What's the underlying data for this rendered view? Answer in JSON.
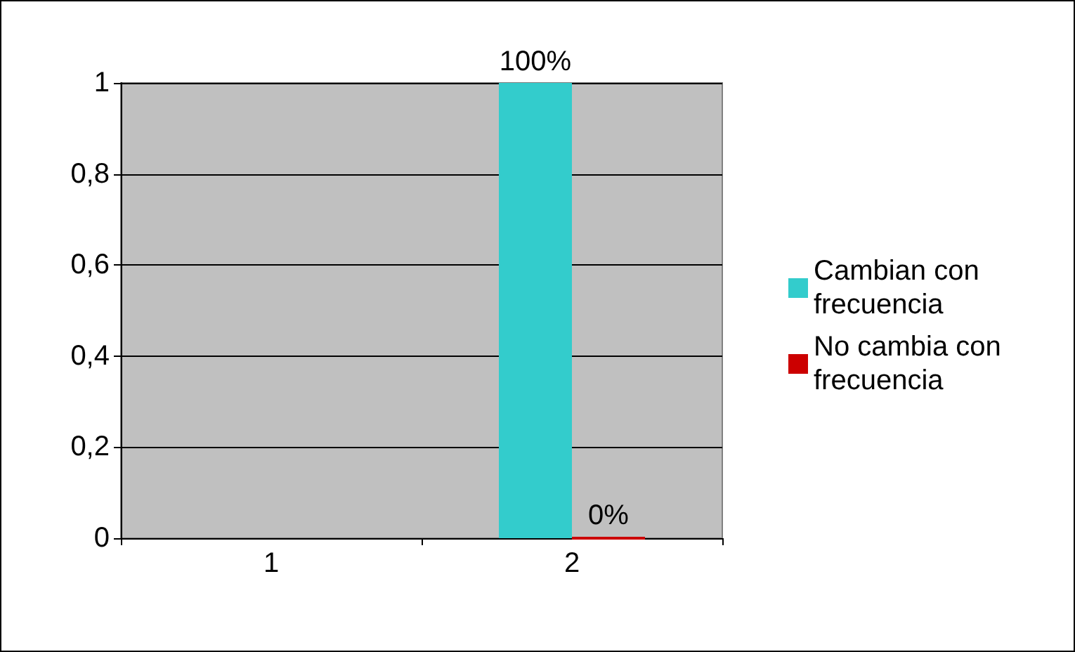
{
  "chart_data": {
    "type": "bar",
    "categories": [
      "1",
      "2"
    ],
    "series": [
      {
        "name": "Cambian con frecuencia",
        "color": "#33cccc",
        "values": [
          null,
          1
        ],
        "value_labels": [
          null,
          "100%"
        ]
      },
      {
        "name": "No cambia con frecuencia",
        "color": "#cc0000",
        "values": [
          null,
          0
        ],
        "value_labels": [
          null,
          "0%"
        ]
      }
    ],
    "ylim": [
      0,
      1
    ],
    "yticks": [
      0,
      {
        "value": 0.2,
        "label": "0,2"
      },
      {
        "value": 0.4,
        "label": "0,4"
      },
      {
        "value": 0.6,
        "label": "0,6"
      },
      {
        "value": 0.8,
        "label": "0,8"
      },
      1
    ],
    "grid": "y",
    "legend": "right"
  }
}
